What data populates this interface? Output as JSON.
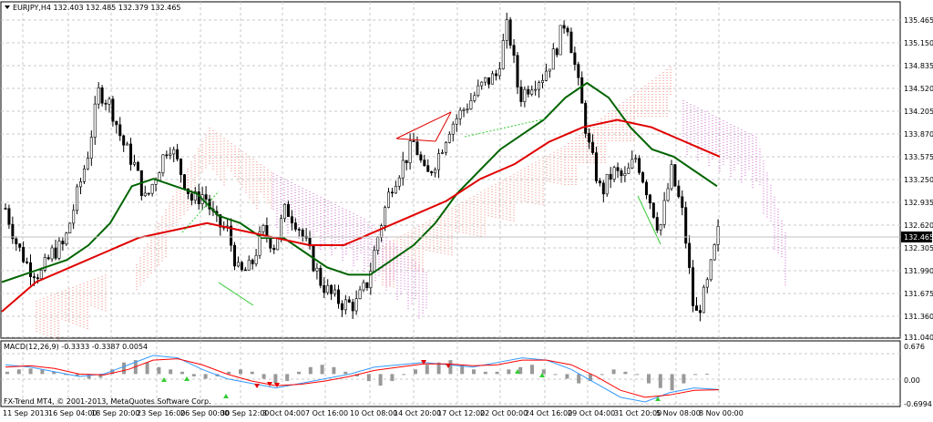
{
  "main_pane": {
    "header_text": "EURJPY,H4  132.403 132.485 132.379 132.465",
    "symbol": "EURJPY",
    "timeframe": "H4",
    "ohlc": {
      "open": "132.403",
      "high": "132.485",
      "low": "132.379",
      "close": "132.465"
    },
    "price_axis_labels": [
      "135.465",
      "135.150",
      "134.835",
      "134.520",
      "134.205",
      "133.870",
      "133.575",
      "133.250",
      "132.935",
      "132.620",
      "132.305",
      "131.990",
      "131.675",
      "131.360",
      "131.040"
    ],
    "current_price_label": "132.465"
  },
  "indicator_pane": {
    "header_text": "MACD(12,26,9) -0.3333 -0.3387 0.0054",
    "name": "MACD(12,26,9)",
    "values": [
      "-0.3333",
      "-0.3387",
      "0.0054"
    ],
    "axis_labels": [
      "0.676",
      "0.00",
      "-0.6994"
    ]
  },
  "copyright": "FX-Trend MT4, © 2001-2013, MetaQuotes Software Corp.",
  "time_axis_labels": [
    "11 Sep 2013",
    "16 Sep 04:00",
    "18 Sep 20:00",
    "23 Sep 16:00",
    "26 Sep 00:00",
    "30 Sep 12:00",
    "3 Oct 04:00",
    "7 Oct 16:00",
    "10 Oct 08:00",
    "14 Oct 20:00",
    "17 Oct 12:00",
    "22 Oct 00:00",
    "24 Oct 16:00",
    "29 Oct 04:00",
    "31 Oct 20:00",
    "5 Nov 08:00",
    "8 Nov 00:00"
  ],
  "colors": {
    "background": "#ffffff",
    "candle": "#000000",
    "ma_fast": "#006400",
    "ma_slow": "#e00000",
    "cloud_bull": "#f08070",
    "cloud_bear": "#cc66cc",
    "macd_hist": "#999999",
    "macd_line": "#3399ff",
    "signal_line": "#ff0000",
    "divergence_line": "#33cc33"
  },
  "chart_data": {
    "type": "candlestick",
    "instrument": "EURJPY",
    "timeframe": "H4",
    "ylim": [
      131.04,
      135.6
    ],
    "x_labels": [
      "11 Sep 2013",
      "16 Sep 04:00",
      "18 Sep 20:00",
      "23 Sep 16:00",
      "26 Sep 00:00",
      "30 Sep 12:00",
      "3 Oct 04:00",
      "7 Oct 16:00",
      "10 Oct 08:00",
      "14 Oct 20:00",
      "17 Oct 12:00",
      "22 Oct 00:00",
      "24 Oct 16:00",
      "29 Oct 04:00",
      "31 Oct 20:00",
      "5 Nov 08:00",
      "8 Nov 00:00"
    ],
    "close_trace": [
      132.8,
      132.3,
      132.0,
      131.9,
      132.2,
      132.3,
      132.9,
      133.5,
      134.4,
      134.2,
      133.7,
      133.4,
      132.9,
      133.3,
      133.7,
      133.3,
      132.9,
      133.0,
      132.6,
      132.5,
      131.9,
      132.0,
      132.5,
      132.3,
      132.8,
      132.6,
      132.2,
      131.8,
      131.6,
      131.5,
      131.5,
      131.8,
      132.5,
      133.1,
      133.4,
      133.7,
      133.2,
      133.5,
      133.9,
      134.1,
      134.3,
      134.5,
      134.6,
      135.3,
      134.3,
      134.5,
      134.6,
      134.9,
      135.4,
      134.5,
      133.6,
      133.0,
      133.3,
      133.2,
      133.5,
      133.0,
      132.5,
      133.3,
      132.7,
      131.3,
      131.7,
      132.47
    ],
    "series": [
      {
        "name": "MA fast",
        "values": [
          131.8,
          131.9,
          132.0,
          132.1,
          132.3,
          132.6,
          133.1,
          133.2,
          133.1,
          133.0,
          132.7,
          132.6,
          132.4,
          132.4,
          132.2,
          132.0,
          131.9,
          131.9,
          132.1,
          132.3,
          132.6,
          133.0,
          133.3,
          133.6,
          133.8,
          134.0,
          134.3,
          134.5,
          134.3,
          133.9,
          133.6,
          133.5,
          133.3,
          133.1
        ]
      },
      {
        "name": "MA slow",
        "values": [
          131.4,
          131.8,
          132.0,
          132.2,
          132.4,
          132.5,
          132.6,
          132.5,
          132.4,
          132.3,
          132.3,
          132.5,
          132.7,
          132.9,
          133.2,
          133.4,
          133.7,
          133.9,
          134.0,
          133.9,
          133.7,
          133.5
        ]
      }
    ],
    "macd": {
      "params": "12,26,9",
      "main": -0.3333,
      "signal": -0.3387,
      "histogram": 0.0054,
      "ylim": [
        -0.6994,
        0.676
      ]
    },
    "current_price": 132.465
  }
}
